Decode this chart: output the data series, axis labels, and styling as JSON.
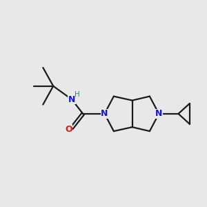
{
  "background_color": "#e8e8e8",
  "bond_color": "#1a1a1a",
  "N_color": "#1414e0",
  "O_color": "#e01414",
  "H_color": "#3a8080",
  "figsize": [
    3.0,
    3.0
  ],
  "dpi": 100,
  "xlim": [
    0.0,
    10.0
  ],
  "ylim": [
    2.8,
    8.2
  ]
}
